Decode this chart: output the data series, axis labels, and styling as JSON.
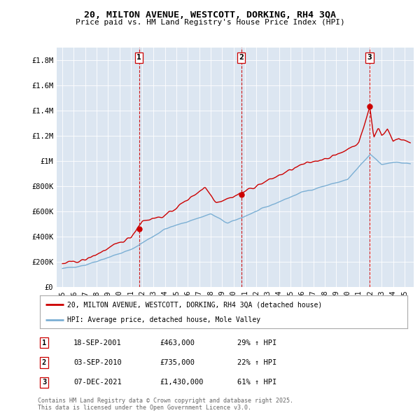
{
  "title1": "20, MILTON AVENUE, WESTCOTT, DORKING, RH4 3QA",
  "title2": "Price paid vs. HM Land Registry's House Price Index (HPI)",
  "red_label": "20, MILTON AVENUE, WESTCOTT, DORKING, RH4 3QA (detached house)",
  "blue_label": "HPI: Average price, detached house, Mole Valley",
  "ylim": [
    0,
    1900000
  ],
  "yticks": [
    0,
    200000,
    400000,
    600000,
    800000,
    1000000,
    1200000,
    1400000,
    1600000,
    1800000
  ],
  "ytick_labels": [
    "£0",
    "£200K",
    "£400K",
    "£600K",
    "£800K",
    "£1M",
    "£1.2M",
    "£1.4M",
    "£1.6M",
    "£1.8M"
  ],
  "plot_bg": "#dce6f1",
  "red_color": "#cc0000",
  "blue_color": "#7bafd4",
  "sale_events": [
    {
      "num": 1,
      "year": 2001.72,
      "price": 463000,
      "label": "18-SEP-2001",
      "amount": "£463,000",
      "pct": "29% ↑ HPI"
    },
    {
      "num": 2,
      "year": 2010.68,
      "price": 735000,
      "label": "03-SEP-2010",
      "amount": "£735,000",
      "pct": "22% ↑ HPI"
    },
    {
      "num": 3,
      "year": 2021.93,
      "price": 1430000,
      "label": "07-DEC-2021",
      "amount": "£1,430,000",
      "pct": "61% ↑ HPI"
    }
  ],
  "footnote": "Contains HM Land Registry data © Crown copyright and database right 2025.\nThis data is licensed under the Open Government Licence v3.0."
}
